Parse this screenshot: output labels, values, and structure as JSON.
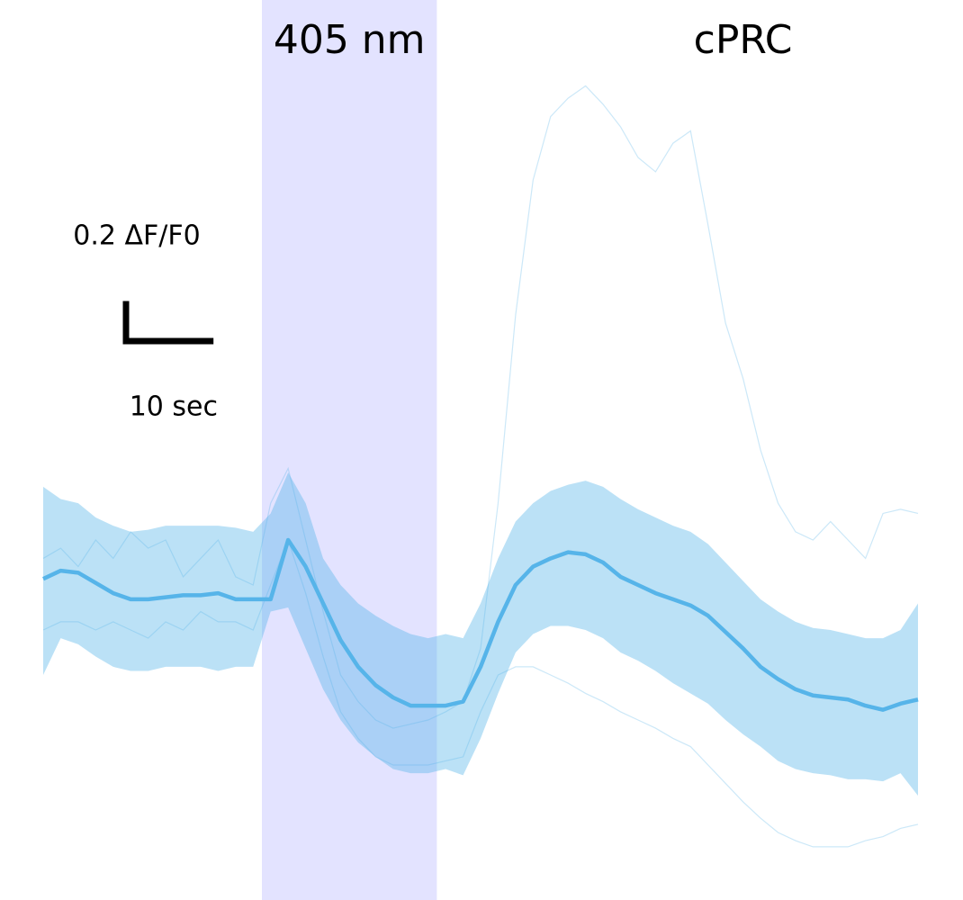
{
  "chart_data": {
    "type": "line",
    "annotations": [
      {
        "text": "405 nm",
        "x": 35
      },
      {
        "text": "cPRC",
        "x": 80
      }
    ],
    "stimulus": {
      "start": 25,
      "end": 45,
      "color": "#e3e3ff"
    },
    "scale_bar": {
      "y_label": "0.2 ΔF/F0",
      "y_length": 0.2,
      "x_label": "10 sec",
      "x_length": 10
    },
    "xlim": [
      0,
      100
    ],
    "ylim": [
      -1.5,
      2.9
    ],
    "color": "#56b4e9",
    "x": [
      0,
      2,
      4,
      6,
      8,
      10,
      12,
      14,
      16,
      18,
      20,
      22,
      24,
      26,
      28,
      30,
      32,
      34,
      36,
      38,
      40,
      42,
      44,
      46,
      48,
      50,
      52,
      54,
      56,
      58,
      60,
      62,
      64,
      66,
      68,
      70,
      72,
      74,
      76,
      78,
      80,
      82,
      84,
      86,
      88,
      90,
      92,
      94,
      96,
      98,
      100
    ],
    "mean": [
      0.07,
      0.11,
      0.1,
      0.05,
      0.0,
      -0.03,
      -0.03,
      -0.02,
      -0.01,
      -0.01,
      0.0,
      -0.03,
      -0.03,
      -0.03,
      0.26,
      0.13,
      -0.05,
      -0.23,
      -0.36,
      -0.45,
      -0.51,
      -0.55,
      -0.55,
      -0.55,
      -0.53,
      -0.36,
      -0.14,
      0.04,
      0.13,
      0.17,
      0.2,
      0.19,
      0.15,
      0.08,
      0.04,
      0.0,
      -0.03,
      -0.06,
      -0.11,
      -0.19,
      -0.27,
      -0.36,
      -0.42,
      -0.47,
      -0.5,
      -0.51,
      -0.52,
      -0.55,
      -0.57,
      -0.54,
      -0.52
    ],
    "band_upper": [
      0.52,
      0.46,
      0.44,
      0.37,
      0.33,
      0.3,
      0.31,
      0.33,
      0.33,
      0.33,
      0.33,
      0.32,
      0.3,
      0.39,
      0.59,
      0.44,
      0.17,
      0.04,
      -0.05,
      -0.11,
      -0.16,
      -0.2,
      -0.22,
      -0.2,
      -0.22,
      -0.05,
      0.17,
      0.35,
      0.44,
      0.5,
      0.53,
      0.55,
      0.52,
      0.46,
      0.41,
      0.37,
      0.33,
      0.3,
      0.24,
      0.15,
      0.06,
      -0.03,
      -0.09,
      -0.14,
      -0.17,
      -0.18,
      -0.2,
      -0.22,
      -0.22,
      -0.18,
      -0.05
    ],
    "band_lower": [
      -0.4,
      -0.22,
      -0.25,
      -0.31,
      -0.36,
      -0.38,
      -0.38,
      -0.36,
      -0.36,
      -0.36,
      -0.38,
      -0.36,
      -0.36,
      -0.09,
      -0.07,
      -0.27,
      -0.47,
      -0.62,
      -0.73,
      -0.8,
      -0.86,
      -0.88,
      -0.88,
      -0.86,
      -0.89,
      -0.71,
      -0.49,
      -0.29,
      -0.2,
      -0.16,
      -0.16,
      -0.18,
      -0.22,
      -0.29,
      -0.33,
      -0.38,
      -0.44,
      -0.49,
      -0.54,
      -0.62,
      -0.69,
      -0.75,
      -0.82,
      -0.86,
      -0.88,
      -0.89,
      -0.91,
      -0.91,
      -0.92,
      -0.88,
      -0.99
    ],
    "traces": [
      {
        "values": [
          0.17,
          0.22,
          0.13,
          0.26,
          0.17,
          0.3,
          0.22,
          0.26,
          0.08,
          0.17,
          0.26,
          0.08,
          0.04,
          0.44,
          0.61,
          0.26,
          -0.09,
          -0.4,
          -0.53,
          -0.62,
          -0.66,
          -0.64,
          -0.62,
          -0.58,
          -0.53,
          -0.27,
          0.44,
          1.36,
          2.02,
          2.33,
          2.42,
          2.48,
          2.39,
          2.28,
          2.13,
          2.06,
          2.2,
          2.26,
          1.8,
          1.32,
          1.05,
          0.7,
          0.44,
          0.3,
          0.26,
          0.35,
          0.26,
          0.17,
          0.39,
          0.41,
          0.39
        ]
      },
      {
        "values": [
          -0.18,
          -0.14,
          -0.14,
          -0.18,
          -0.14,
          -0.18,
          -0.22,
          -0.14,
          -0.18,
          -0.09,
          -0.14,
          -0.14,
          -0.18,
          0.04,
          0.26,
          0.0,
          -0.31,
          -0.58,
          -0.71,
          -0.8,
          -0.84,
          -0.84,
          -0.84,
          -0.82,
          -0.8,
          -0.58,
          -0.4,
          -0.36,
          -0.36,
          -0.4,
          -0.44,
          -0.49,
          -0.53,
          -0.58,
          -0.62,
          -0.66,
          -0.71,
          -0.75,
          -0.84,
          -0.93,
          -1.02,
          -1.1,
          -1.17,
          -1.21,
          -1.24,
          -1.24,
          -1.24,
          -1.21,
          -1.19,
          -1.15,
          -1.13
        ]
      }
    ]
  }
}
